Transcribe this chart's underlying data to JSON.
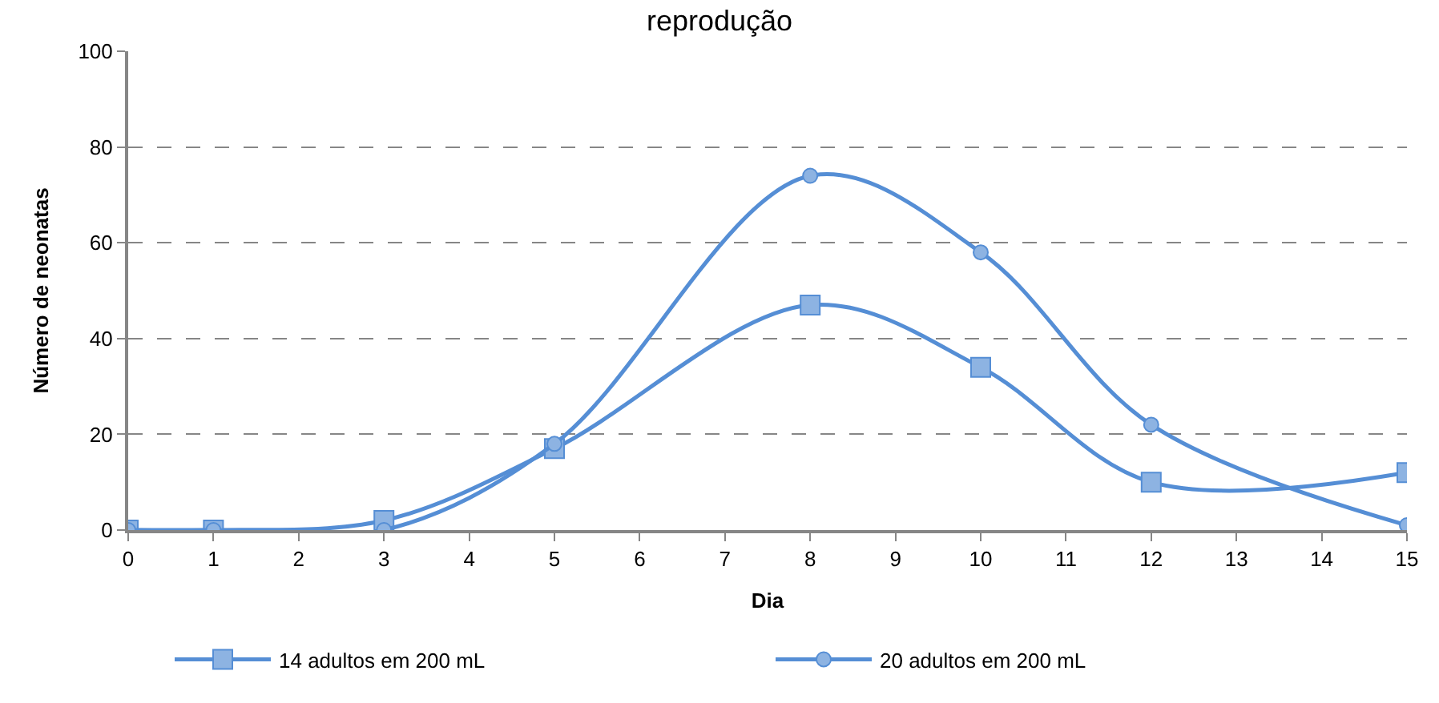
{
  "chart_data": {
    "type": "line",
    "title": "reprodução",
    "xlabel": "Dia",
    "ylabel": "Número de neonatas",
    "x": [
      0,
      1,
      3,
      5,
      8,
      10,
      12,
      15
    ],
    "series": [
      {
        "name": "14 adultos em 200 mL",
        "color": "#558ed5",
        "marker": "square",
        "values": [
          0,
          0,
          2,
          17,
          47,
          34,
          10,
          12
        ]
      },
      {
        "name": "20 adultos em 200 mL",
        "color": "#558ed5",
        "marker": "circle",
        "values": [
          0,
          0,
          0,
          18,
          74,
          58,
          22,
          1
        ]
      }
    ],
    "xlim": [
      0,
      15
    ],
    "xticks": [
      0,
      1,
      2,
      3,
      4,
      5,
      6,
      7,
      8,
      9,
      10,
      11,
      12,
      13,
      14,
      15
    ],
    "ylim": [
      0,
      100
    ],
    "yticks": [
      0,
      20,
      40,
      60,
      80,
      100
    ],
    "grid": "y",
    "legend": "bottom",
    "line_style": "solid"
  }
}
